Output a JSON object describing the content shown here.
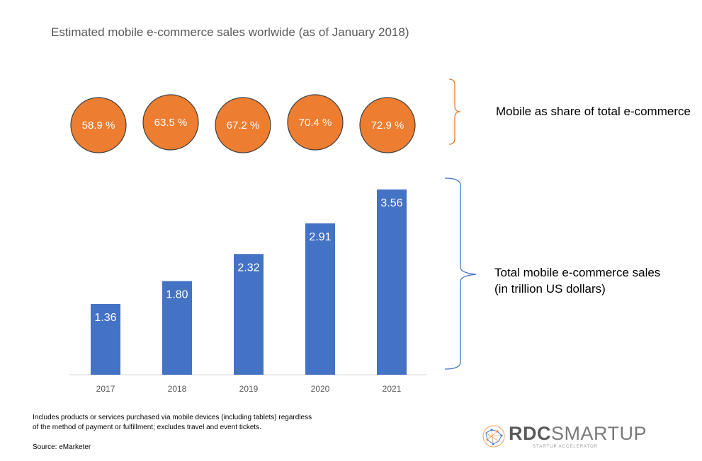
{
  "title": "Estimated mobile e-commerce sales worlwide (as of January 2018)",
  "share_label": "Mobile as share of total e-commerce",
  "sales_label": [
    "Total mobile e-commerce sales",
    "(in trillion US dollars)"
  ],
  "footnote": [
    "Includes products or services purchased via mobile devices (including tablets) regardless",
    "of the method of payment or fulfillment; excludes travel and event tickets."
  ],
  "source": "Source: eMarketer",
  "logo": {
    "brand_a": "RDC",
    "brand_b": "SMARTUP",
    "tagline": "STARTUP ACCELERATOR"
  },
  "colors": {
    "bar": "#4472c4",
    "circle": "#ed7d31",
    "bracket_orange": "#ed7d31",
    "bracket_blue": "#4472c4"
  },
  "chart_data": {
    "type": "bar",
    "title": "Estimated mobile e-commerce sales worlwide (as of January 2018)",
    "categories": [
      "2017",
      "2018",
      "2019",
      "2020",
      "2021"
    ],
    "series": [
      {
        "name": "Total mobile e-commerce sales (in trillion US dollars)",
        "values": [
          1.36,
          1.8,
          2.32,
          2.91,
          3.56
        ],
        "labels": [
          "1.36",
          "1.80",
          "2.32",
          "2.91",
          "3.56"
        ]
      },
      {
        "name": "Mobile as share of total e-commerce",
        "values": [
          58.9,
          63.5,
          67.2,
          70.4,
          72.9
        ],
        "labels": [
          "58.9 %",
          "63.5 %",
          "67.2 %",
          "70.4 %",
          "72.9 %"
        ]
      }
    ],
    "ylim": [
      0,
      3.56
    ],
    "grid": false
  }
}
